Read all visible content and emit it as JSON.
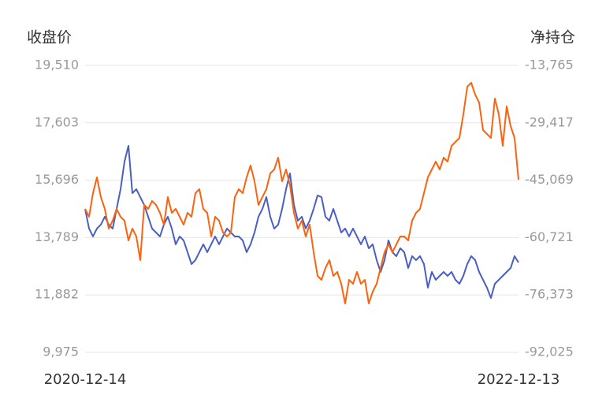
{
  "chart_data": {
    "type": "line",
    "y_label": "收盘价",
    "y2_label": "净持仓",
    "categories": [
      "2020-12-14",
      null,
      null,
      null,
      null,
      null,
      null,
      null,
      null,
      null,
      null,
      null,
      null,
      null,
      null,
      null,
      null,
      null,
      null,
      null,
      null,
      null,
      null,
      null,
      null,
      null,
      null,
      null,
      null,
      null,
      null,
      null,
      null,
      null,
      null,
      null,
      null,
      null,
      null,
      null,
      null,
      null,
      null,
      null,
      null,
      null,
      null,
      null,
      null,
      null,
      null,
      null,
      null,
      null,
      null,
      null,
      null,
      null,
      null,
      null,
      null,
      null,
      null,
      null,
      null,
      null,
      null,
      null,
      null,
      null,
      null,
      null,
      null,
      null,
      null,
      null,
      null,
      null,
      null,
      null,
      null,
      null,
      null,
      null,
      null,
      null,
      null,
      null,
      null,
      null,
      null,
      null,
      null,
      null,
      null,
      null,
      null,
      null,
      null,
      null,
      null,
      null,
      null,
      null,
      null,
      null,
      null,
      null,
      null,
      null,
      "2022-12-13"
    ],
    "series": [
      {
        "color": "#4a5fc1",
        "values": [
          14742,
          14088,
          13826,
          14088,
          14219,
          14481,
          14219,
          14088,
          14742,
          15397,
          16314,
          16838,
          15266,
          15397,
          15135,
          14873,
          14481,
          14088,
          13957,
          13826,
          14219,
          14481,
          14088,
          13564,
          13826,
          13695,
          13302,
          12909,
          13040,
          13302,
          13564,
          13302,
          13564,
          13826,
          13564,
          13826,
          14088,
          13957,
          13826,
          13826,
          13695,
          13302,
          13564,
          13957,
          14481,
          14742,
          15135,
          14481,
          14088,
          14219,
          14742,
          15397,
          15921,
          14873,
          14350,
          14481,
          14088,
          14350,
          14742,
          15188,
          15135,
          14481,
          14350,
          14742,
          14350,
          13957,
          14088,
          13826,
          14088,
          13826,
          13564,
          13826,
          13433,
          13564,
          13040,
          12647,
          13040,
          13695,
          13302,
          13171,
          13433,
          13302,
          12778,
          13171,
          13040,
          13171,
          12909,
          12123,
          12647,
          12385,
          12516,
          12647,
          12516,
          12647,
          12385,
          12254,
          12516,
          12909,
          13171,
          13040,
          12647,
          12385,
          12123,
          11782,
          12254,
          12385,
          12516,
          12647,
          12778,
          13171,
          12961
        ]
      },
      {
        "color": "#fa6410",
        "axis": "y2",
        "values": [
          -52895,
          -55045,
          -48595,
          -44295,
          -49670,
          -52895,
          -58270,
          -56120,
          -52895,
          -55045,
          -56120,
          -61495,
          -58270,
          -60420,
          -66870,
          -51820,
          -52895,
          -50745,
          -51820,
          -53970,
          -57195,
          -49670,
          -53970,
          -52895,
          -55045,
          -57195,
          -53970,
          -55045,
          -48595,
          -47520,
          -52895,
          -53970,
          -60420,
          -55045,
          -56120,
          -59345,
          -60420,
          -59345,
          -49670,
          -47520,
          -48595,
          -44295,
          -41070,
          -45370,
          -51820,
          -49670,
          -47520,
          -43220,
          -42145,
          -38920,
          -45370,
          -42145,
          -46445,
          -53970,
          -58270,
          -56120,
          -60420,
          -57195,
          -64720,
          -71170,
          -72245,
          -69020,
          -66870,
          -71170,
          -70095,
          -73320,
          -78695,
          -72245,
          -73320,
          -70095,
          -73320,
          -72245,
          -78695,
          -75470,
          -73320,
          -69020,
          -64720,
          -62570,
          -64720,
          -62570,
          -60420,
          -60420,
          -61495,
          -56120,
          -53970,
          -52895,
          -48595,
          -44295,
          -42145,
          -39995,
          -42145,
          -38920,
          -39995,
          -35695,
          -34620,
          -33545,
          -27095,
          -19570,
          -18495,
          -21720,
          -23870,
          -31395,
          -32470,
          -33545,
          -22795,
          -27095,
          -35695,
          -24945,
          -30320,
          -33545,
          -44940
        ]
      }
    ],
    "ylim": [
      9975,
      19510
    ],
    "yticks": [
      {
        "value": 9975,
        "label": "9,975"
      },
      {
        "value": 11882,
        "label": "11,882"
      },
      {
        "value": 13789,
        "label": "13,789"
      },
      {
        "value": 15696,
        "label": "15,696"
      },
      {
        "value": 17603,
        "label": "17,603"
      },
      {
        "value": 19510,
        "label": "19,510"
      }
    ],
    "y2lim": [
      -92025,
      -13765
    ],
    "y2ticks": [
      {
        "value": -92025,
        "label": "-92,025"
      },
      {
        "value": -76373,
        "label": "-76,373"
      },
      {
        "value": -60721,
        "label": "-60,721"
      },
      {
        "value": -45069,
        "label": "-45,069"
      },
      {
        "value": -29417,
        "label": "-29,417"
      },
      {
        "value": -13765,
        "label": "-13,765"
      }
    ],
    "grid": true
  }
}
